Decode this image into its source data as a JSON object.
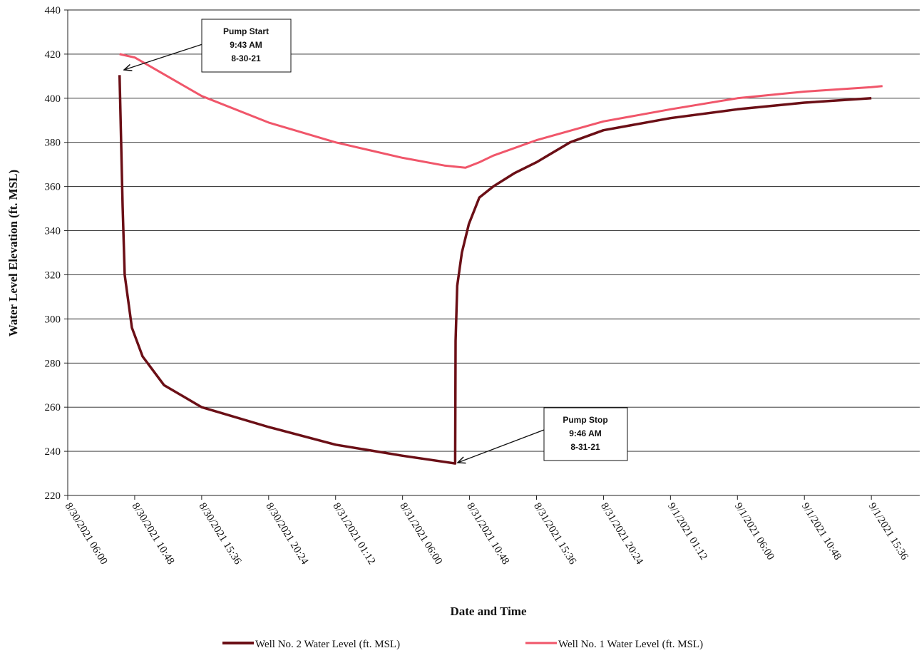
{
  "chart_data": {
    "type": "line",
    "xlabel": "Date and Time",
    "ylabel": "Water Level Elevation (ft. MSL)",
    "xlim": [
      "8/30/2021 06:00",
      "9/1/2021 19:04"
    ],
    "xticks": [
      "8/30/2021 06:00",
      "8/30/2021 10:48",
      "8/30/2021 15:36",
      "8/30/2021 20:24",
      "8/31/2021 01:12",
      "8/31/2021 06:00",
      "8/31/2021 10:48",
      "8/31/2021 15:36",
      "8/31/2021 20:24",
      "9/1/2021 01:12",
      "9/1/2021 06:00",
      "9/1/2021 10:48",
      "9/1/2021 15:36"
    ],
    "ylim": [
      220,
      440
    ],
    "yticks": [
      220,
      240,
      260,
      280,
      300,
      320,
      340,
      360,
      380,
      400,
      420,
      440
    ],
    "grid": true,
    "legend": "bottom",
    "series": [
      {
        "name": "Well No. 2 Water Level (ft. MSL)",
        "color": "#6b0f16",
        "x": [
          "8/30/2021 09:43",
          "8/30/2021 09:56",
          "8/30/2021 10:05",
          "8/30/2021 10:36",
          "8/30/2021 11:22",
          "8/30/2021 12:54",
          "8/30/2021 15:36",
          "8/30/2021 20:24",
          "8/31/2021 01:12",
          "8/31/2021 06:00",
          "8/31/2021 09:46",
          "8/31/2021 09:48",
          "8/31/2021 09:55",
          "8/31/2021 10:15",
          "8/31/2021 10:45",
          "8/31/2021 11:30",
          "8/31/2021 12:30",
          "8/31/2021 14:00",
          "8/31/2021 15:36",
          "8/31/2021 18:00",
          "8/31/2021 20:24",
          "9/1/2021 01:12",
          "9/1/2021 06:00",
          "9/1/2021 10:48",
          "9/1/2021 15:36"
        ],
        "values": [
          410.5,
          351,
          320,
          296,
          283,
          270,
          260,
          251,
          243,
          238,
          234.5,
          290,
          315,
          330,
          343,
          355,
          360,
          366,
          371,
          380,
          385.5,
          391,
          395,
          398,
          400
        ]
      },
      {
        "name": "Well No. 1 Water Level (ft. MSL)",
        "color": "#f0566a",
        "x": [
          "8/30/2021 09:43",
          "8/30/2021 10:48",
          "8/30/2021 15:36",
          "8/30/2021 20:24",
          "8/31/2021 01:12",
          "8/31/2021 06:00",
          "8/31/2021 09:00",
          "8/31/2021 09:46",
          "8/31/2021 10:30",
          "8/31/2021 11:30",
          "8/31/2021 12:30",
          "8/31/2021 15:36",
          "8/31/2021 20:24",
          "9/1/2021 01:12",
          "9/1/2021 06:00",
          "9/1/2021 10:48",
          "9/1/2021 15:36",
          "9/1/2021 16:24"
        ],
        "values": [
          420,
          418.5,
          401,
          389,
          380,
          373,
          369.5,
          369,
          368.5,
          371,
          374,
          381,
          389.5,
          395,
          400,
          403,
          405,
          405.5
        ]
      }
    ],
    "annotations": [
      {
        "lines": [
          "Pump Start",
          "9:43 AM",
          "8-30-21"
        ]
      },
      {
        "lines": [
          "Pump Stop",
          "9:46 AM",
          "8-31-21"
        ]
      }
    ]
  }
}
